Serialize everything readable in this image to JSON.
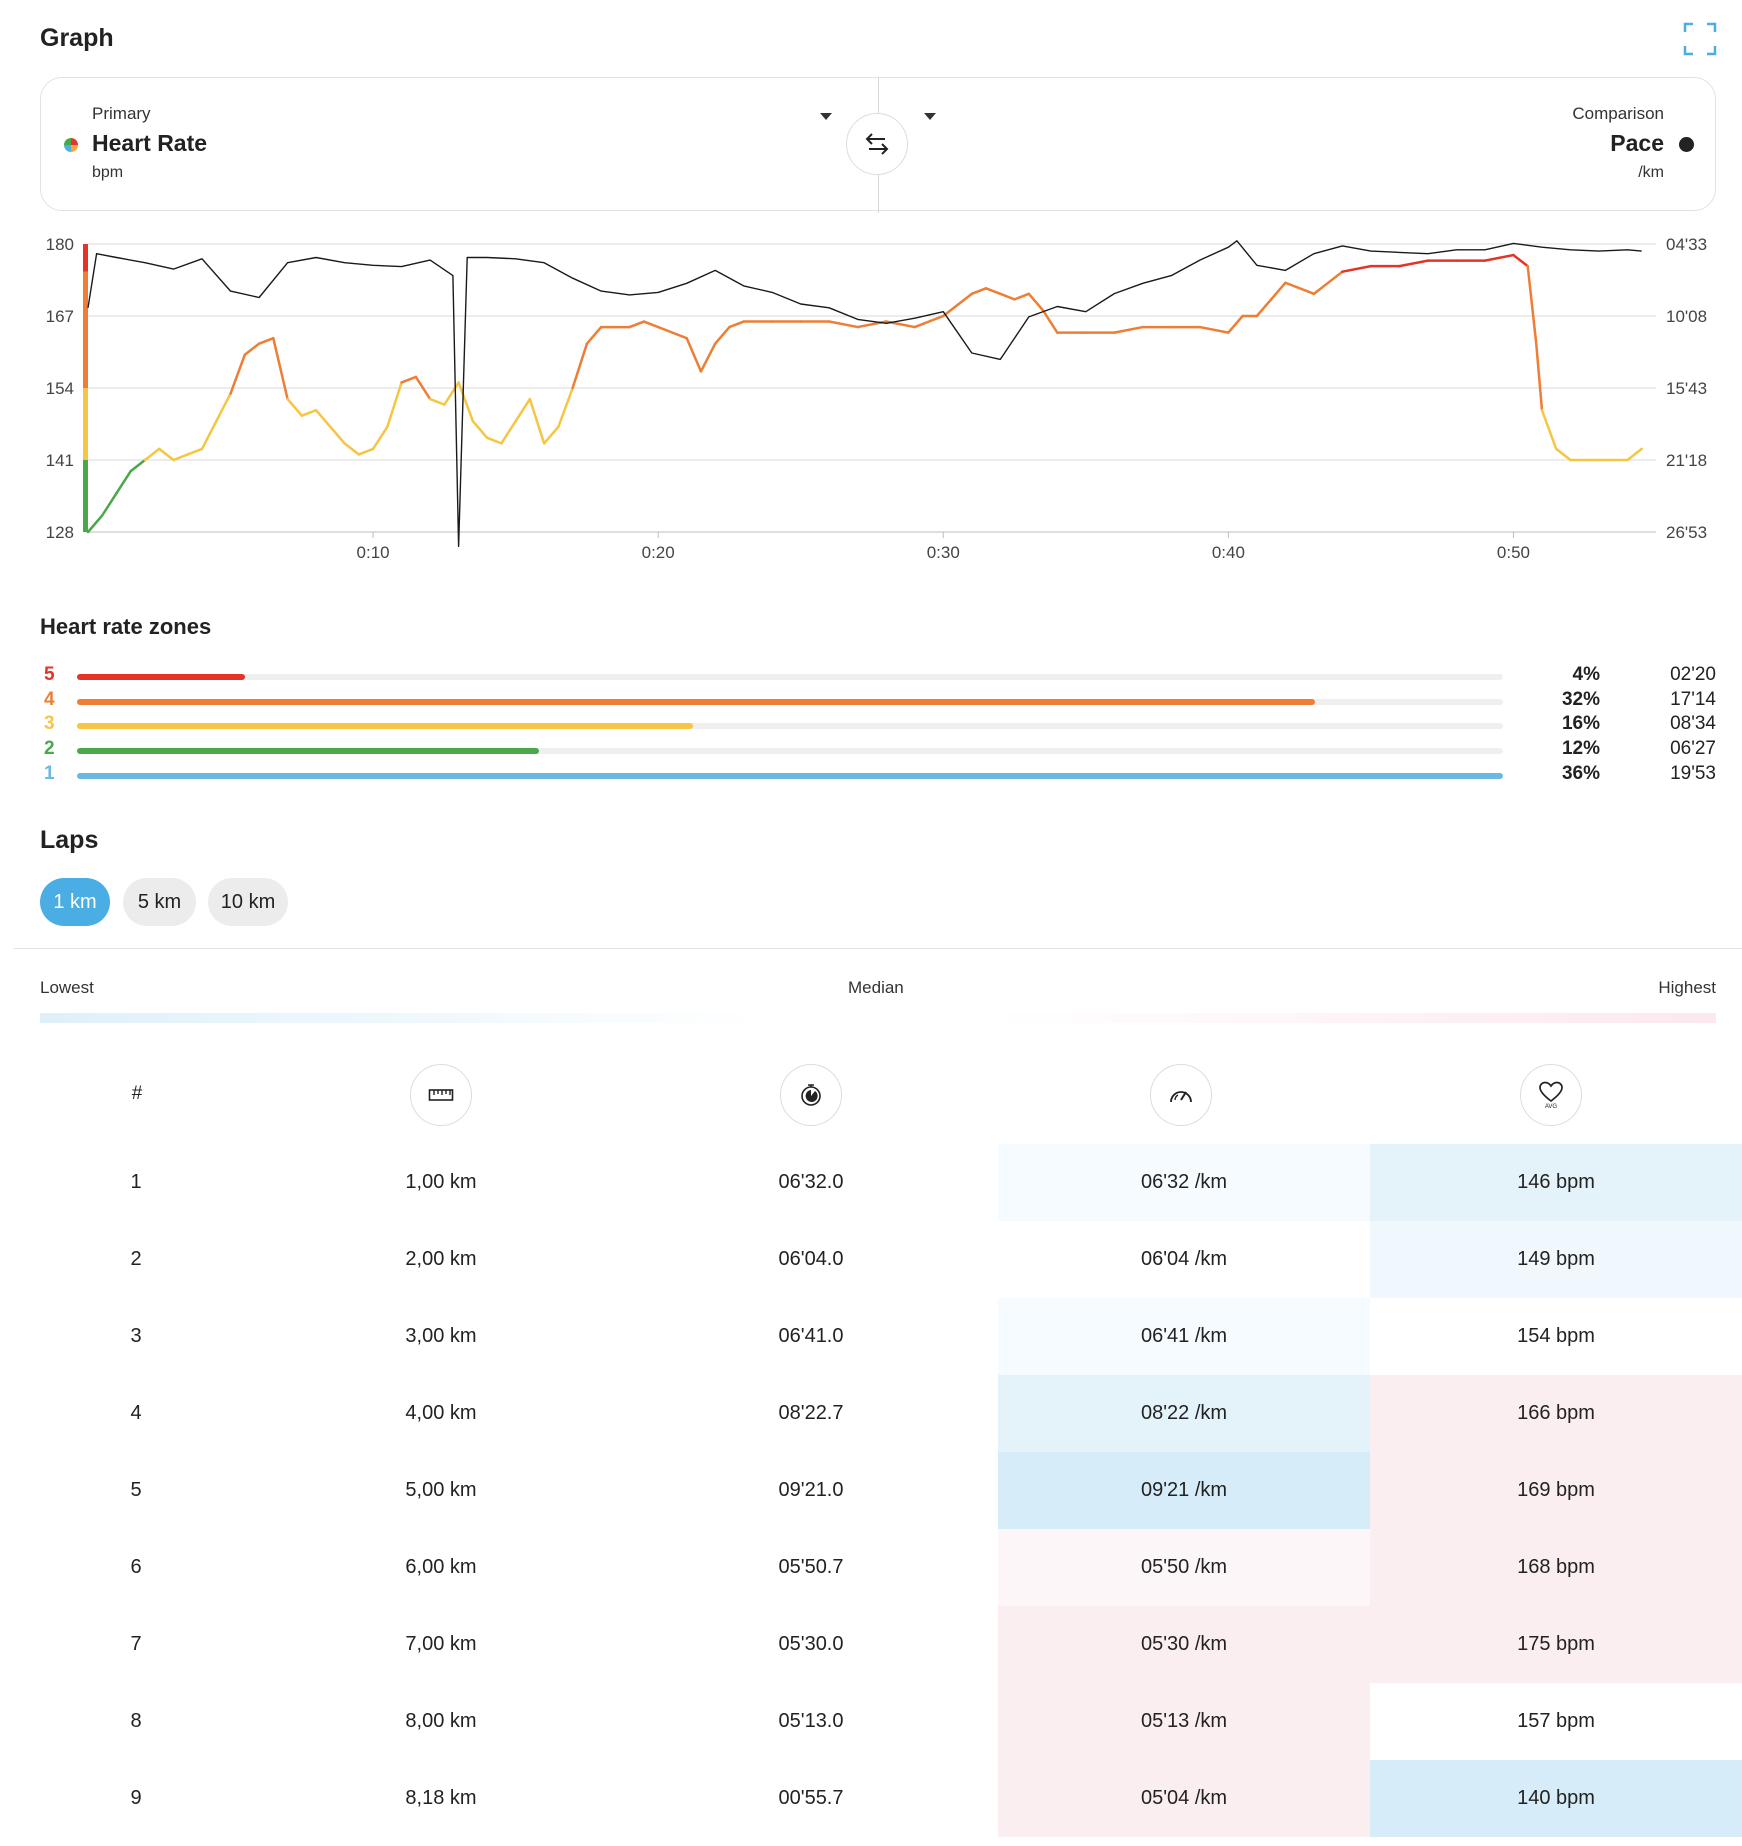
{
  "graph": {
    "title": "Graph",
    "primary": {
      "label": "Primary",
      "metric": "Heart Rate",
      "unit": "bpm"
    },
    "comparison": {
      "label": "Comparison",
      "metric": "Pace",
      "unit": "/km"
    }
  },
  "chart_data": {
    "type": "line",
    "y_left_ticks": [
      "180",
      "167",
      "154",
      "141",
      "128"
    ],
    "y_left_range": [
      128,
      180
    ],
    "y_right_ticks": [
      "04'33",
      "10'08",
      "15'43",
      "21'18",
      "26'53"
    ],
    "x_ticks": [
      "0:10",
      "0:20",
      "0:30",
      "0:40",
      "0:50"
    ],
    "x_range_minutes": [
      0,
      55
    ],
    "zone_thresholds_bpm": [
      141,
      154,
      167,
      175
    ],
    "series": [
      {
        "name": "Heart Rate",
        "x": [
          0,
          0.5,
          1,
          1.5,
          2,
          2.5,
          3,
          3.5,
          4,
          4.5,
          5,
          5.5,
          6,
          6.5,
          7,
          7.5,
          8,
          8.5,
          9,
          9.5,
          10,
          10.5,
          11,
          11.5,
          12,
          12.5,
          13,
          13.5,
          14,
          14.5,
          15,
          15.5,
          16,
          16.5,
          17,
          17.5,
          18,
          18.5,
          19,
          19.5,
          20,
          20.5,
          21,
          21.5,
          22,
          22.5,
          23,
          24,
          25,
          26,
          27,
          28,
          29,
          30,
          31,
          31.5,
          32,
          32.5,
          33,
          33.5,
          34,
          35,
          36,
          37,
          38,
          39,
          40,
          40.5,
          41,
          41.5,
          42,
          43,
          44,
          45,
          46,
          47,
          48,
          49,
          50,
          50.5,
          50.8,
          51,
          51.5,
          52,
          53,
          54,
          54.5
        ],
        "y": [
          128,
          131,
          135,
          139,
          141,
          143,
          141,
          142,
          143,
          148,
          153,
          160,
          162,
          163,
          152,
          149,
          150,
          147,
          144,
          142,
          143,
          147,
          155,
          156,
          152,
          151,
          155,
          148,
          145,
          144,
          148,
          152,
          144,
          147,
          154,
          162,
          165,
          165,
          165,
          166,
          165,
          164,
          163,
          157,
          162,
          165,
          166,
          166,
          166,
          166,
          165,
          166,
          165,
          167,
          171,
          172,
          171,
          170,
          171,
          168,
          164,
          164,
          164,
          165,
          165,
          165,
          164,
          167,
          167,
          170,
          173,
          171,
          175,
          176,
          176,
          177,
          177,
          177,
          178,
          176,
          162,
          150,
          143,
          141,
          141,
          141,
          143
        ],
        "unit": "bpm"
      },
      {
        "name": "Pace",
        "x": [
          0,
          0.3,
          1,
          2,
          3,
          4,
          5,
          6,
          7,
          8,
          9,
          10,
          11,
          12,
          12.8,
          13,
          13.3,
          14,
          15,
          16,
          17,
          18,
          19,
          20,
          21,
          22,
          23,
          24,
          25,
          26,
          27,
          28,
          29,
          30,
          31,
          32,
          33,
          34,
          35,
          36,
          37,
          38,
          39,
          40,
          40.3,
          41,
          42,
          43,
          44,
          45,
          46,
          47,
          48,
          49,
          50,
          51,
          52,
          53,
          54,
          54.5
        ],
        "y_minutes": [
          9.5,
          5.3,
          5.6,
          6.0,
          6.5,
          5.7,
          8.2,
          8.7,
          6.0,
          5.6,
          6.0,
          6.2,
          6.3,
          5.8,
          7.0,
          28.0,
          5.6,
          5.6,
          5.7,
          6.0,
          7.2,
          8.2,
          8.5,
          8.3,
          7.6,
          6.6,
          7.8,
          8.3,
          9.2,
          9.5,
          10.4,
          10.7,
          10.3,
          9.8,
          13.0,
          13.5,
          10.2,
          9.4,
          9.8,
          8.4,
          7.6,
          7.0,
          5.8,
          4.8,
          4.3,
          6.2,
          6.6,
          5.3,
          4.7,
          5.1,
          5.2,
          5.3,
          5.0,
          5.0,
          4.5,
          4.8,
          5.0,
          5.1,
          5.0,
          5.1
        ],
        "unit": "/km"
      }
    ]
  },
  "zones": {
    "title": "Heart rate zones",
    "items": [
      {
        "num": "5",
        "pct": "4%",
        "time": "02'20",
        "fill": 0.118,
        "color": "#e33427"
      },
      {
        "num": "4",
        "pct": "32%",
        "time": "17'14",
        "fill": 0.868,
        "color": "#ee7e35"
      },
      {
        "num": "3",
        "pct": "16%",
        "time": "08'34",
        "fill": 0.432,
        "color": "#f6c544"
      },
      {
        "num": "2",
        "pct": "12%",
        "time": "06'27",
        "fill": 0.324,
        "color": "#4aa84a"
      },
      {
        "num": "1",
        "pct": "36%",
        "time": "19'53",
        "fill": 1.0,
        "color": "#6ab9e3"
      }
    ]
  },
  "laps": {
    "title": "Laps",
    "tabs": [
      "1 km",
      "5 km",
      "10 km"
    ],
    "active_tab": "1 km",
    "legend": {
      "low": "Lowest",
      "median": "Median",
      "high": "Highest"
    },
    "index_header": "#",
    "icons": {
      "distance": "ruler-icon",
      "duration": "stopwatch-icon",
      "pace": "speedometer-icon",
      "heart_rate": "heart-avg-icon"
    },
    "heart_icon_label": "AVG",
    "rows": [
      {
        "n": "1",
        "distance": "1,00 km",
        "duration": "06'32.0",
        "pace": "06'32 /km",
        "hr": "146 bpm",
        "pace_bg": "#f5fbfe",
        "hr_bg": "#e4f2fa"
      },
      {
        "n": "2",
        "distance": "2,00 km",
        "duration": "06'04.0",
        "pace": "06'04 /km",
        "hr": "149 bpm",
        "pace_bg": "#ffffff",
        "hr_bg": "#f0f8fd"
      },
      {
        "n": "3",
        "distance": "3,00 km",
        "duration": "06'41.0",
        "pace": "06'41 /km",
        "hr": "154 bpm",
        "pace_bg": "#f5fbfe",
        "hr_bg": "#ffffff"
      },
      {
        "n": "4",
        "distance": "4,00 km",
        "duration": "08'22.7",
        "pace": "08'22 /km",
        "hr": "166 bpm",
        "pace_bg": "#e4f2fa",
        "hr_bg": "#fbeef1"
      },
      {
        "n": "5",
        "distance": "5,00 km",
        "duration": "09'21.0",
        "pace": "09'21 /km",
        "hr": "169 bpm",
        "pace_bg": "#d6ecf8",
        "hr_bg": "#fbeef1"
      },
      {
        "n": "6",
        "distance": "6,00 km",
        "duration": "05'50.7",
        "pace": "05'50 /km",
        "hr": "168 bpm",
        "pace_bg": "#fdf6f8",
        "hr_bg": "#fbeef1"
      },
      {
        "n": "7",
        "distance": "7,00 km",
        "duration": "05'30.0",
        "pace": "05'30 /km",
        "hr": "175 bpm",
        "pace_bg": "#fbeef1",
        "hr_bg": "#fbeef1"
      },
      {
        "n": "8",
        "distance": "8,00 km",
        "duration": "05'13.0",
        "pace": "05'13 /km",
        "hr": "157 bpm",
        "pace_bg": "#fbeef1",
        "hr_bg": "#ffffff"
      },
      {
        "n": "9",
        "distance": "8,18 km",
        "duration": "00'55.7",
        "pace": "05'04 /km",
        "hr": "140 bpm",
        "pace_bg": "#fbeef1",
        "hr_bg": "#d6ecf8"
      }
    ]
  }
}
